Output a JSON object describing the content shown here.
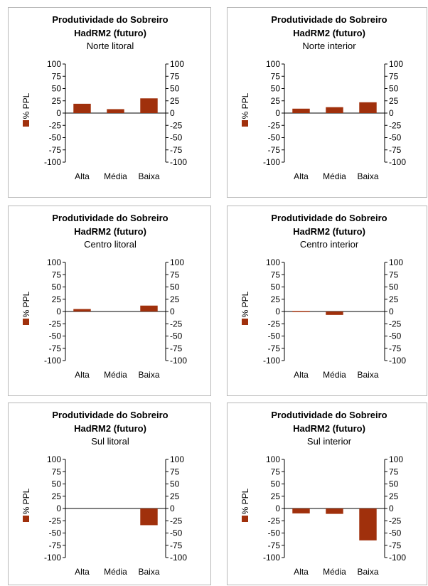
{
  "chart_data": [
    {
      "type": "bar",
      "title": "Produtividade do Sobreiro",
      "subtitle": "HadRM2 (futuro)",
      "region": "Norte litoral",
      "ylabel": "% PPL",
      "categories": [
        "Alta",
        "Média",
        "Baixa"
      ],
      "values": [
        19,
        8,
        30
      ],
      "ylim": [
        -100,
        100
      ],
      "yticks": [
        "100",
        "75",
        "50",
        "25",
        "0",
        "-25",
        "-50",
        "-75",
        "-100"
      ],
      "yticks_right": [
        "100",
        "75",
        "50",
        "25",
        "0",
        "-25",
        "-50",
        "-75",
        "-100"
      ],
      "bar_color": "#a0300c",
      "legend": "left"
    },
    {
      "type": "bar",
      "title": "Produtividade do Sobreiro",
      "subtitle": "HadRM2 (futuro)",
      "region": "Norte interior",
      "ylabel": "% PPL",
      "categories": [
        "Alta",
        "Média",
        "Baixa"
      ],
      "values": [
        9,
        12,
        22
      ],
      "ylim": [
        -100,
        100
      ],
      "yticks": [
        "100",
        "75",
        "50",
        "25",
        "0",
        "-25",
        "-50",
        "-75",
        "-100"
      ],
      "yticks_right": [
        "100",
        "75",
        "50",
        "25",
        "0",
        "-25",
        "-50",
        "-75",
        "-100"
      ],
      "bar_color": "#a0300c",
      "legend": "left"
    },
    {
      "type": "bar",
      "title": "Produtividade do Sobreiro",
      "subtitle": "HadRM2 (futuro)",
      "region": "Centro litoral",
      "ylabel": "% PPL",
      "categories": [
        "Alta",
        "Média",
        "Baixa"
      ],
      "values": [
        5,
        0,
        12
      ],
      "ylim": [
        -100,
        100
      ],
      "yticks": [
        "100",
        "75",
        "50",
        "25",
        "0",
        "-25",
        "-50",
        "-75",
        "-100"
      ],
      "yticks_right": [
        "100",
        "75",
        "50",
        "25",
        "0",
        "-25",
        "-50",
        "-75",
        "-100"
      ],
      "bar_color": "#a0300c",
      "legend": "left"
    },
    {
      "type": "bar",
      "title": "Produtividade do Sobreiro",
      "subtitle": "HadRM2 (futuro)",
      "region": "Centro interior",
      "ylabel": "% PPL",
      "categories": [
        "Alta",
        "Média",
        "Baixa"
      ],
      "values": [
        1,
        -7,
        0
      ],
      "ylim": [
        -100,
        100
      ],
      "yticks": [
        "100",
        "75",
        "50",
        "25",
        "0",
        "-25",
        "-50",
        "-75",
        "-100"
      ],
      "yticks_right": [
        "100",
        "75",
        "50",
        "25",
        "0",
        "-25",
        "-50",
        "-75",
        "-100"
      ],
      "bar_color": "#a0300c",
      "legend": "left"
    },
    {
      "type": "bar",
      "title": "Produtividade do Sobreiro",
      "subtitle": "HadRM2 (futuro)",
      "region": "Sul litoral",
      "ylabel": "% PPL",
      "categories": [
        "Alta",
        "Média",
        "Baixa"
      ],
      "values": [
        0,
        0,
        -34
      ],
      "ylim": [
        -100,
        100
      ],
      "yticks": [
        "100",
        "75",
        "50",
        "25",
        "0",
        "-25",
        "-50",
        "-75",
        "-100"
      ],
      "yticks_right": [
        "100",
        "75",
        "50",
        "25",
        "0",
        "-25",
        "-50",
        "-75",
        "-100"
      ],
      "bar_color": "#a0300c",
      "legend": "left"
    },
    {
      "type": "bar",
      "title": "Produtividade do Sobreiro",
      "subtitle": "HadRM2 (futuro)",
      "region": "Sul interior",
      "ylabel": "% PPL",
      "categories": [
        "Alta",
        "Média",
        "Baixa"
      ],
      "values": [
        -10,
        -11,
        -65
      ],
      "ylim": [
        -100,
        100
      ],
      "yticks": [
        "100",
        "75",
        "50",
        "25",
        "0",
        "-25",
        "-50",
        "-75",
        "-100"
      ],
      "yticks_right": [
        "100",
        "75",
        "50",
        "25",
        "0",
        "-25",
        "-50",
        "-75",
        "-100"
      ],
      "bar_color": "#a0300c",
      "legend": "left"
    }
  ]
}
